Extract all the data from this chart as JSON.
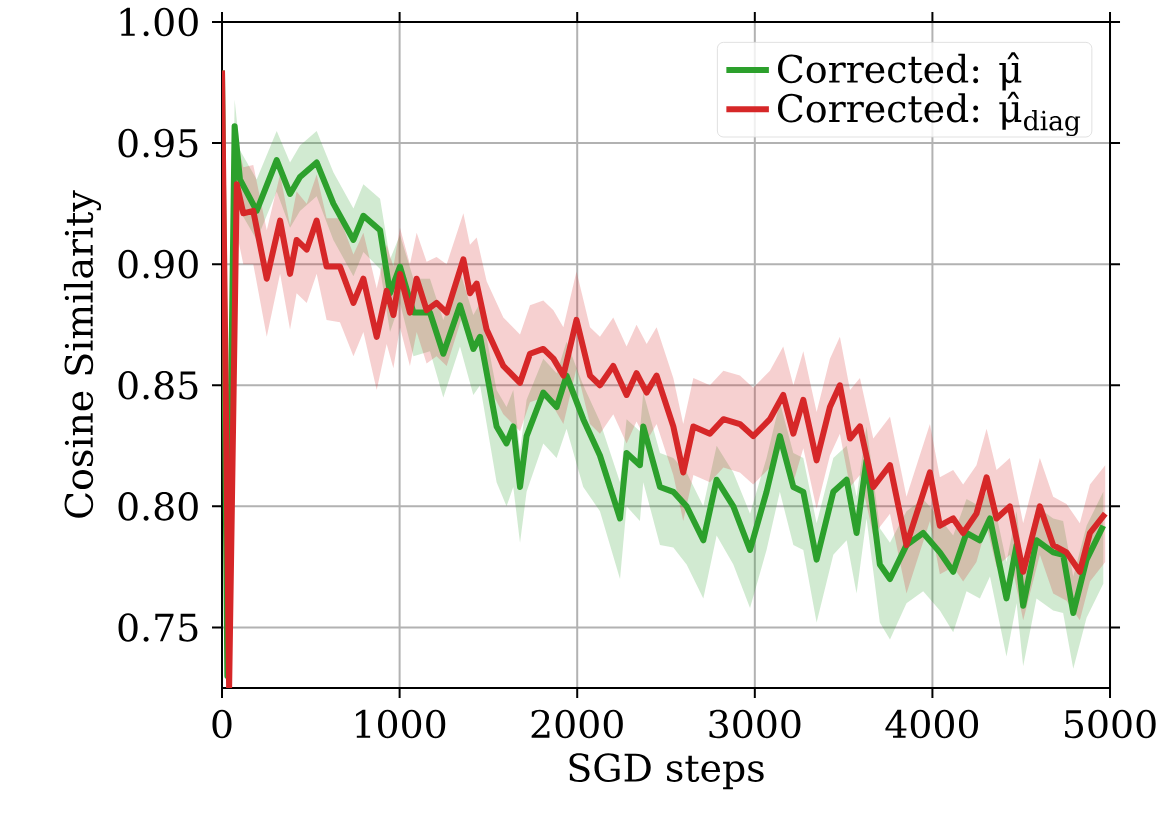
{
  "chart_data": {
    "type": "line",
    "xlabel": "SGD steps",
    "ylabel": "Cosine Similarity",
    "xlim": [
      0,
      5000
    ],
    "ylim": [
      0.725,
      1.0
    ],
    "xticks": [
      0,
      1000,
      2000,
      3000,
      4000,
      5000
    ],
    "yticks": [
      {
        "value": 0.75,
        "label": "0.75"
      },
      {
        "value": 0.8,
        "label": "0.80"
      },
      {
        "value": 0.85,
        "label": "0.85"
      },
      {
        "value": 0.9,
        "label": "0.90"
      },
      {
        "value": 0.95,
        "label": "0.95"
      },
      {
        "value": 1.0,
        "label": "1.00"
      }
    ],
    "grid": true,
    "legend": "top right",
    "series": [
      {
        "name": "Corrected: μ̂",
        "color": "#2ca02c",
        "x": [
          0,
          30,
          71,
          101,
          195,
          308,
          383,
          439,
          533,
          627,
          740,
          796,
          890,
          946,
          1002,
          1078,
          1171,
          1246,
          1340,
          1415,
          1453,
          1546,
          1602,
          1640,
          1678,
          1715,
          1809,
          1884,
          1940,
          2034,
          2128,
          2241,
          2278,
          2353,
          2372,
          2466,
          2541,
          2616,
          2710,
          2785,
          2879,
          2973,
          3066,
          3141,
          3217,
          3273,
          3348,
          3442,
          3517,
          3573,
          3629,
          3704,
          3761,
          3854,
          3948,
          4042,
          4117,
          4192,
          4267,
          4324,
          4417,
          4474,
          4511,
          4586,
          4680,
          4736,
          4793,
          4868,
          4962
        ],
        "values": [
          0.98,
          0.73,
          0.957,
          0.935,
          0.922,
          0.943,
          0.929,
          0.936,
          0.942,
          0.925,
          0.91,
          0.92,
          0.914,
          0.888,
          0.899,
          0.88,
          0.88,
          0.863,
          0.883,
          0.865,
          0.87,
          0.833,
          0.826,
          0.833,
          0.808,
          0.829,
          0.847,
          0.841,
          0.854,
          0.836,
          0.821,
          0.795,
          0.822,
          0.817,
          0.833,
          0.808,
          0.806,
          0.8,
          0.786,
          0.811,
          0.8,
          0.782,
          0.806,
          0.829,
          0.808,
          0.806,
          0.778,
          0.806,
          0.811,
          0.789,
          0.819,
          0.776,
          0.77,
          0.784,
          0.789,
          0.781,
          0.773,
          0.789,
          0.786,
          0.795,
          0.762,
          0.784,
          0.759,
          0.786,
          0.781,
          0.78,
          0.756,
          0.778,
          0.792
        ],
        "lower": [
          0.98,
          0.73,
          0.945,
          0.922,
          0.91,
          0.93,
          0.915,
          0.922,
          0.928,
          0.91,
          0.895,
          0.905,
          0.898,
          0.872,
          0.884,
          0.862,
          0.864,
          0.845,
          0.866,
          0.846,
          0.85,
          0.81,
          0.8,
          0.808,
          0.785,
          0.806,
          0.826,
          0.82,
          0.832,
          0.808,
          0.798,
          0.77,
          0.8,
          0.794,
          0.81,
          0.784,
          0.783,
          0.776,
          0.762,
          0.788,
          0.776,
          0.758,
          0.782,
          0.806,
          0.784,
          0.782,
          0.752,
          0.78,
          0.786,
          0.764,
          0.795,
          0.752,
          0.745,
          0.76,
          0.765,
          0.757,
          0.748,
          0.765,
          0.762,
          0.771,
          0.738,
          0.76,
          0.734,
          0.762,
          0.757,
          0.756,
          0.733,
          0.754,
          0.768
        ],
        "upper": [
          0.98,
          0.73,
          0.968,
          0.947,
          0.935,
          0.955,
          0.942,
          0.949,
          0.955,
          0.938,
          0.923,
          0.933,
          0.927,
          0.902,
          0.912,
          0.894,
          0.894,
          0.877,
          0.897,
          0.879,
          0.884,
          0.848,
          0.841,
          0.848,
          0.823,
          0.844,
          0.861,
          0.855,
          0.868,
          0.85,
          0.835,
          0.81,
          0.836,
          0.831,
          0.847,
          0.822,
          0.82,
          0.814,
          0.8,
          0.825,
          0.814,
          0.797,
          0.82,
          0.843,
          0.822,
          0.82,
          0.793,
          0.82,
          0.825,
          0.804,
          0.833,
          0.791,
          0.785,
          0.798,
          0.803,
          0.795,
          0.788,
          0.803,
          0.8,
          0.809,
          0.777,
          0.798,
          0.774,
          0.8,
          0.795,
          0.794,
          0.771,
          0.792,
          0.806
        ]
      },
      {
        "name": "Corrected: μ̂$_{diag}$",
        "color": "#d62728",
        "x": [
          0,
          40,
          83,
          120,
          176,
          252,
          327,
          383,
          420,
          477,
          533,
          589,
          664,
          740,
          796,
          871,
          927,
          965,
          1002,
          1058,
          1096,
          1152,
          1208,
          1265,
          1359,
          1396,
          1434,
          1490,
          1584,
          1678,
          1734,
          1809,
          1866,
          1922,
          1996,
          2072,
          2128,
          2203,
          2278,
          2334,
          2391,
          2447,
          2541,
          2597,
          2654,
          2747,
          2823,
          2916,
          2991,
          3085,
          3160,
          3217,
          3273,
          3348,
          3423,
          3479,
          3536,
          3592,
          3667,
          3761,
          3854,
          3911,
          3986,
          4042,
          4117,
          4173,
          4248,
          4305,
          4361,
          4436,
          4511,
          4605,
          4680,
          4755,
          4830,
          4887,
          4973
        ],
        "values": [
          0.98,
          0.725,
          0.933,
          0.921,
          0.922,
          0.894,
          0.918,
          0.896,
          0.91,
          0.906,
          0.918,
          0.899,
          0.899,
          0.884,
          0.894,
          0.87,
          0.889,
          0.879,
          0.896,
          0.88,
          0.894,
          0.881,
          0.884,
          0.88,
          0.902,
          0.888,
          0.892,
          0.873,
          0.858,
          0.851,
          0.863,
          0.865,
          0.861,
          0.854,
          0.877,
          0.854,
          0.85,
          0.858,
          0.846,
          0.855,
          0.847,
          0.854,
          0.833,
          0.814,
          0.833,
          0.83,
          0.836,
          0.834,
          0.829,
          0.836,
          0.846,
          0.83,
          0.844,
          0.819,
          0.841,
          0.85,
          0.828,
          0.833,
          0.808,
          0.817,
          0.784,
          0.797,
          0.814,
          0.792,
          0.795,
          0.789,
          0.797,
          0.812,
          0.795,
          0.8,
          0.773,
          0.8,
          0.784,
          0.781,
          0.773,
          0.789,
          0.797
        ],
        "lower": [
          0.98,
          0.725,
          0.913,
          0.9,
          0.9,
          0.87,
          0.896,
          0.873,
          0.888,
          0.884,
          0.896,
          0.877,
          0.876,
          0.862,
          0.872,
          0.848,
          0.867,
          0.857,
          0.874,
          0.858,
          0.872,
          0.859,
          0.862,
          0.858,
          0.88,
          0.866,
          0.87,
          0.851,
          0.838,
          0.831,
          0.843,
          0.845,
          0.841,
          0.834,
          0.857,
          0.834,
          0.83,
          0.838,
          0.826,
          0.835,
          0.827,
          0.834,
          0.813,
          0.794,
          0.813,
          0.81,
          0.816,
          0.814,
          0.809,
          0.816,
          0.826,
          0.81,
          0.824,
          0.799,
          0.821,
          0.83,
          0.808,
          0.813,
          0.788,
          0.797,
          0.764,
          0.777,
          0.794,
          0.772,
          0.775,
          0.769,
          0.777,
          0.792,
          0.775,
          0.78,
          0.753,
          0.78,
          0.764,
          0.761,
          0.753,
          0.769,
          0.777
        ],
        "upper": [
          0.98,
          0.725,
          0.951,
          0.94,
          0.941,
          0.914,
          0.937,
          0.916,
          0.93,
          0.925,
          0.937,
          0.919,
          0.919,
          0.904,
          0.913,
          0.89,
          0.908,
          0.899,
          0.915,
          0.9,
          0.913,
          0.901,
          0.903,
          0.9,
          0.921,
          0.908,
          0.911,
          0.893,
          0.878,
          0.871,
          0.883,
          0.885,
          0.881,
          0.874,
          0.897,
          0.874,
          0.87,
          0.878,
          0.866,
          0.875,
          0.867,
          0.874,
          0.853,
          0.834,
          0.853,
          0.85,
          0.856,
          0.854,
          0.849,
          0.856,
          0.866,
          0.85,
          0.864,
          0.839,
          0.861,
          0.87,
          0.848,
          0.853,
          0.828,
          0.837,
          0.804,
          0.817,
          0.834,
          0.812,
          0.815,
          0.809,
          0.817,
          0.832,
          0.815,
          0.82,
          0.793,
          0.82,
          0.804,
          0.801,
          0.793,
          0.809,
          0.817
        ]
      }
    ]
  }
}
